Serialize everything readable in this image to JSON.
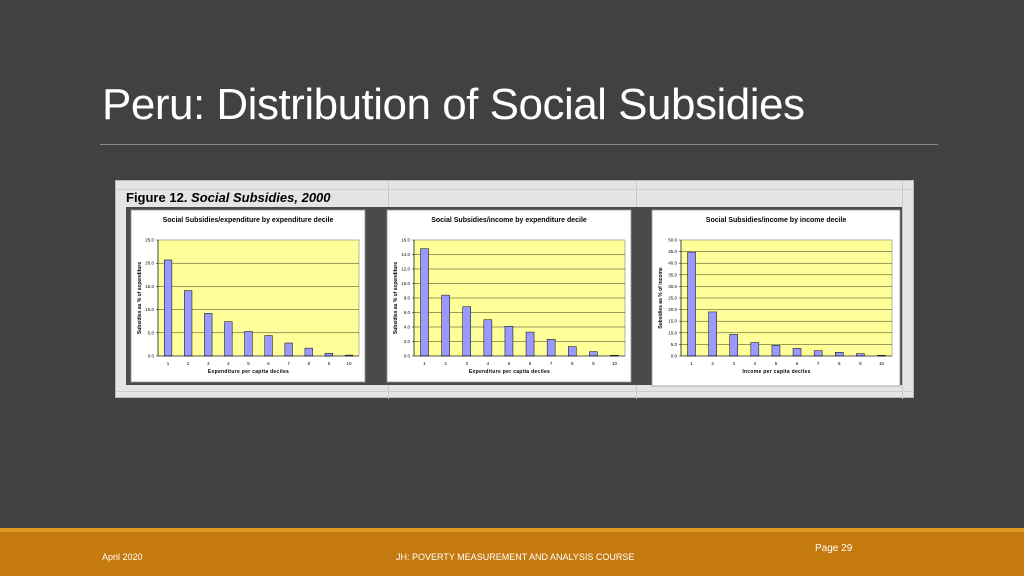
{
  "slide": {
    "title": "Peru: Distribution of Social Subsidies",
    "figure_label": "Figure 12.",
    "figure_title": "Social Subsidies, 2000"
  },
  "footer": {
    "date": "April 2020",
    "course": "JH: POVERTY MEASUREMENT AND ANALYSIS COURSE",
    "page": "Page 29"
  },
  "colors": {
    "background": "#414141",
    "plot_area": "#ffff99",
    "bar": "#9999ff",
    "footer": "#c47a0e"
  },
  "chart_data": [
    {
      "type": "bar",
      "title": "Social Subsidies/expenditure by expenditure decile",
      "xlabel": "Expenditure per capita deciles",
      "ylabel": "Subsidies as % of expenditure",
      "categories": [
        "1",
        "2",
        "3",
        "4",
        "5",
        "6",
        "7",
        "8",
        "9",
        "10"
      ],
      "values": [
        20.7,
        14.1,
        9.2,
        7.4,
        5.3,
        4.4,
        2.8,
        1.7,
        0.6,
        0.2
      ],
      "ylim": [
        0,
        25
      ],
      "yticks": [
        "0.0",
        "5.0",
        "10.0",
        "15.0",
        "20.0",
        "25.0"
      ],
      "ytick_values": [
        0,
        5,
        10,
        15,
        20,
        25
      ],
      "grid": true
    },
    {
      "type": "bar",
      "title": "Social Subsidies/income by expenditure decile",
      "xlabel": "Expenditure per capita deciles",
      "ylabel": "Subsidies as % of expenditure",
      "categories": [
        "1",
        "2",
        "3",
        "4",
        "5",
        "6",
        "7",
        "8",
        "9",
        "10"
      ],
      "values": [
        14.8,
        8.4,
        6.8,
        5.0,
        4.1,
        3.3,
        2.3,
        1.3,
        0.6,
        0.1
      ],
      "ylim": [
        0,
        16
      ],
      "yticks": [
        "0.0",
        "2.0",
        "4.0",
        "6.0",
        "8.0",
        "10.0",
        "12.0",
        "14.0",
        "16.0"
      ],
      "ytick_values": [
        0,
        2,
        4,
        6,
        8,
        10,
        12,
        14,
        16
      ],
      "grid": true
    },
    {
      "type": "bar",
      "title": "Social Subsidies/income by income decile",
      "xlabel": "Income per capita deciles",
      "ylabel": "Subsidies as % of income",
      "categories": [
        "1",
        "2",
        "3",
        "4",
        "5",
        "6",
        "7",
        "8",
        "9",
        "10"
      ],
      "values": [
        44.8,
        19.0,
        9.3,
        5.8,
        4.6,
        3.3,
        2.3,
        1.6,
        1.0,
        0.3
      ],
      "ylim": [
        0,
        50
      ],
      "yticks": [
        "0.0",
        "5.0",
        "10.0",
        "15.0",
        "20.0",
        "25.0",
        "30.0",
        "35.0",
        "40.0",
        "45.0",
        "50.0"
      ],
      "ytick_values": [
        0,
        5,
        10,
        15,
        20,
        25,
        30,
        35,
        40,
        45,
        50
      ],
      "grid": true
    }
  ]
}
